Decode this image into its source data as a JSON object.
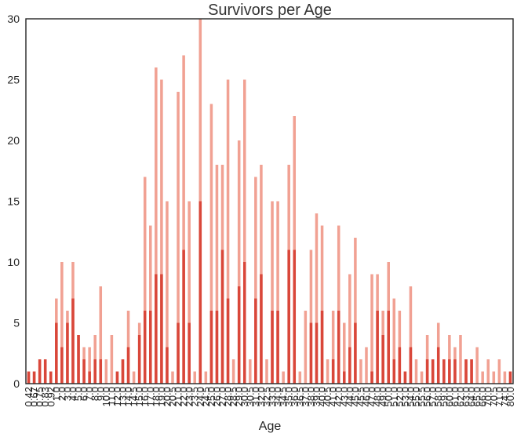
{
  "chart_data": {
    "type": "bar",
    "title": "Survivors per Age",
    "xlabel": "Age",
    "ylabel": "",
    "ylim": [
      0,
      30
    ],
    "yticks": [
      0,
      5,
      10,
      15,
      20,
      25,
      30
    ],
    "grid": false,
    "stacked": false,
    "overlay": true,
    "categories": [
      "0.42",
      "0.67",
      "0.75",
      "0.83",
      "0.92",
      "1.0",
      "2.0",
      "3.0",
      "4.0",
      "5.0",
      "6.0",
      "7.0",
      "8.0",
      "9.0",
      "10.0",
      "11.0",
      "12.0",
      "13.0",
      "14.0",
      "14.5",
      "15.0",
      "16.0",
      "17.0",
      "18.0",
      "19.0",
      "20.0",
      "20.5",
      "21.0",
      "22.0",
      "23.0",
      "23.5",
      "24.0",
      "24.5",
      "25.0",
      "26.0",
      "27.0",
      "28.0",
      "28.5",
      "29.0",
      "30.0",
      "30.5",
      "31.0",
      "32.0",
      "32.5",
      "33.0",
      "34.0",
      "34.5",
      "35.0",
      "36.0",
      "36.5",
      "37.0",
      "38.0",
      "39.0",
      "40.0",
      "40.5",
      "41.0",
      "42.0",
      "43.0",
      "44.0",
      "45.0",
      "45.5",
      "46.0",
      "47.0",
      "48.0",
      "49.0",
      "50.0",
      "51.0",
      "52.0",
      "53.0",
      "54.0",
      "55.0",
      "55.5",
      "56.0",
      "57.0",
      "58.0",
      "59.0",
      "60.0",
      "61.0",
      "62.0",
      "63.0",
      "64.0",
      "65.0",
      "66.0",
      "70.0",
      "70.5",
      "71.0",
      "74.0",
      "80.0"
    ],
    "series": [
      {
        "color": "#f1a193",
        "values": [
          1,
          1,
          2,
          2,
          1,
          7,
          10,
          6,
          10,
          4,
          3,
          3,
          4,
          8,
          2,
          4,
          1,
          2,
          6,
          1,
          5,
          17,
          13,
          26,
          25,
          15,
          1,
          24,
          27,
          15,
          1,
          30,
          1,
          23,
          18,
          18,
          25,
          2,
          20,
          25,
          2,
          17,
          18,
          2,
          15,
          15,
          1,
          18,
          22,
          1,
          6,
          11,
          14,
          13,
          2,
          6,
          13,
          5,
          9,
          12,
          2,
          3,
          9,
          9,
          6,
          10,
          7,
          6,
          1,
          8,
          2,
          1,
          4,
          2,
          5,
          2,
          4,
          3,
          4,
          2,
          2,
          3,
          1,
          2,
          1,
          2,
          1,
          1
        ]
      },
      {
        "color": "#d9473a",
        "values": [
          1,
          1,
          2,
          2,
          1,
          5,
          3,
          5,
          7,
          4,
          2,
          1,
          2,
          2,
          0,
          0,
          1,
          2,
          3,
          0,
          4,
          6,
          6,
          9,
          9,
          3,
          0,
          5,
          11,
          5,
          0,
          15,
          0,
          6,
          6,
          11,
          7,
          0,
          8,
          10,
          0,
          7,
          9,
          0,
          6,
          6,
          0,
          11,
          11,
          0,
          0,
          5,
          5,
          6,
          0,
          2,
          6,
          1,
          3,
          5,
          0,
          0,
          1,
          6,
          4,
          6,
          2,
          3,
          1,
          3,
          0,
          0,
          2,
          2,
          3,
          2,
          2,
          2,
          0,
          2,
          2,
          0,
          0,
          0,
          0,
          0,
          0,
          1
        ]
      }
    ]
  }
}
